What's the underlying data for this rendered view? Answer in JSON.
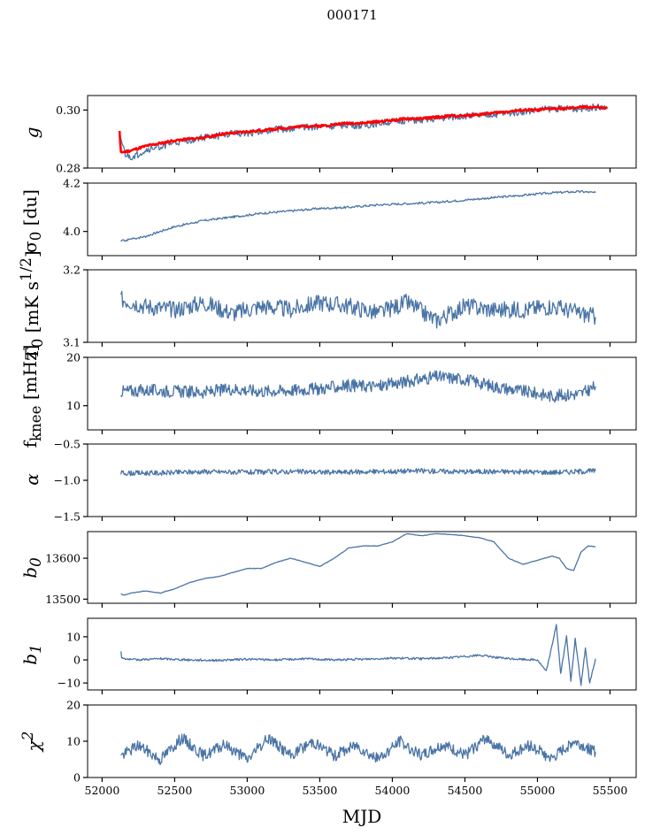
{
  "title": "000171",
  "xlabel": "MJD",
  "colors": {
    "series": "#4a74a6",
    "model": "#ff0000"
  },
  "chart_data": [
    {
      "type": "line",
      "name": "g",
      "ylabel_html": "g",
      "ylim": [
        0.28,
        0.305
      ],
      "yticks": [
        0.28,
        0.3
      ],
      "ytick_labels": [
        "0.28",
        "0.30"
      ],
      "series": [
        {
          "name": "g",
          "color": "#4a74a6",
          "x": [
            52120,
            52160,
            52200,
            52300,
            52400,
            52500,
            52600,
            52700,
            52800,
            52900,
            53000,
            53100,
            53200,
            53300,
            53400,
            53500,
            53600,
            53700,
            53800,
            53900,
            54000,
            54100,
            54200,
            54300,
            54400,
            54500,
            54600,
            54700,
            54800,
            54900,
            55000,
            55100,
            55200,
            55300,
            55400,
            55480
          ],
          "y": [
            0.2915,
            0.2845,
            0.2835,
            0.286,
            0.2875,
            0.2885,
            0.2895,
            0.2905,
            0.291,
            0.292,
            0.292,
            0.2925,
            0.2935,
            0.2935,
            0.294,
            0.2945,
            0.2945,
            0.295,
            0.2945,
            0.2955,
            0.296,
            0.2965,
            0.2965,
            0.297,
            0.2975,
            0.298,
            0.298,
            0.2985,
            0.299,
            0.2995,
            0.3,
            0.3005,
            0.3005,
            0.3005,
            0.301,
            0.3005
          ]
        },
        {
          "name": "model",
          "color": "#ff0000",
          "x": [
            52120,
            52130,
            52150,
            52200,
            52300,
            52400,
            52500,
            52600,
            52700,
            52800,
            52900,
            53000,
            53100,
            53200,
            53300,
            53400,
            53500,
            53600,
            53700,
            53800,
            53900,
            54000,
            54100,
            54200,
            54300,
            54400,
            54500,
            54600,
            54700,
            54800,
            54900,
            55000,
            55100,
            55200,
            55300,
            55400,
            55480
          ],
          "y": [
            0.2925,
            0.2855,
            0.2855,
            0.286,
            0.2875,
            0.2885,
            0.2895,
            0.29,
            0.2905,
            0.2915,
            0.292,
            0.2925,
            0.293,
            0.2935,
            0.294,
            0.2945,
            0.2945,
            0.295,
            0.2955,
            0.2955,
            0.296,
            0.2965,
            0.297,
            0.297,
            0.2975,
            0.298,
            0.298,
            0.2985,
            0.299,
            0.2995,
            0.3,
            0.3,
            0.3005,
            0.3005,
            0.301,
            0.301,
            0.3005
          ]
        }
      ]
    },
    {
      "type": "line",
      "name": "sigma0",
      "ylabel_html": "σ<sub>0</sub> [du]",
      "ylim": [
        3.9,
        4.2
      ],
      "yticks": [
        4.0,
        4.2
      ],
      "ytick_labels": [
        "4.0",
        "4.2"
      ],
      "series": [
        {
          "name": "sigma0",
          "color": "#4a74a6",
          "x": [
            52130,
            52300,
            52500,
            52700,
            52900,
            53100,
            53300,
            53500,
            53700,
            53900,
            54100,
            54300,
            54500,
            54700,
            54900,
            55100,
            55300,
            55400
          ],
          "y": [
            3.96,
            3.98,
            4.02,
            4.045,
            4.06,
            4.075,
            4.085,
            4.095,
            4.1,
            4.11,
            4.115,
            4.12,
            4.13,
            4.14,
            4.15,
            4.16,
            4.165,
            4.16
          ]
        }
      ]
    },
    {
      "type": "line",
      "name": "T0",
      "ylabel_html": "T<sub>0</sub> [mK s<sup>1/2</sup>]",
      "ylim": [
        3.1,
        3.2
      ],
      "yticks": [
        3.1,
        3.2
      ],
      "ytick_labels": [
        "3.1",
        "3.2"
      ],
      "series": [
        {
          "name": "T0",
          "color": "#4a74a6",
          "x": [
            52130,
            52300,
            52500,
            52700,
            52900,
            53100,
            53300,
            53500,
            53700,
            53900,
            54100,
            54300,
            54500,
            54700,
            54900,
            55100,
            55300,
            55400
          ],
          "y": [
            3.16,
            3.15,
            3.145,
            3.155,
            3.14,
            3.15,
            3.145,
            3.155,
            3.15,
            3.14,
            3.155,
            3.13,
            3.15,
            3.145,
            3.145,
            3.15,
            3.14,
            3.135
          ]
        }
      ]
    },
    {
      "type": "line",
      "name": "fknee",
      "ylabel_html": "f<sub>knee</sub> [mHz]",
      "ylim": [
        5,
        20
      ],
      "yticks": [
        10,
        20
      ],
      "ytick_labels": [
        "10",
        "20"
      ],
      "series": [
        {
          "name": "fknee",
          "color": "#4a74a6",
          "x": [
            52130,
            52300,
            52500,
            52700,
            52900,
            53100,
            53300,
            53500,
            53700,
            53900,
            54100,
            54300,
            54500,
            54700,
            54900,
            55100,
            55300,
            55400
          ],
          "y": [
            13,
            13.2,
            13,
            12.8,
            13.5,
            13,
            13.2,
            13.5,
            14.2,
            14,
            15,
            16,
            15.5,
            14,
            13,
            12,
            12.5,
            14
          ]
        }
      ]
    },
    {
      "type": "line",
      "name": "alpha",
      "ylabel_html": "α",
      "ylim": [
        -1.5,
        -0.5
      ],
      "yticks": [
        -1.5,
        -1.0,
        -0.5
      ],
      "ytick_labels": [
        "−1.5",
        "−1.0",
        "−0.5"
      ],
      "series": [
        {
          "name": "alpha",
          "color": "#4a74a6",
          "x": [
            52130,
            52400,
            52700,
            53000,
            53300,
            53600,
            53900,
            54200,
            54500,
            54800,
            55100,
            55400
          ],
          "y": [
            -0.9,
            -0.9,
            -0.88,
            -0.89,
            -0.88,
            -0.89,
            -0.88,
            -0.87,
            -0.88,
            -0.88,
            -0.89,
            -0.87
          ]
        }
      ]
    },
    {
      "type": "line",
      "name": "b0",
      "ylabel_html": "b<sub>0</sub>",
      "ylim": [
        13490,
        13665
      ],
      "yticks": [
        13500,
        13600
      ],
      "ytick_labels": [
        "13500",
        "13600"
      ],
      "series": [
        {
          "name": "b0",
          "color": "#4a74a6",
          "x": [
            52130,
            52150,
            52200,
            52300,
            52400,
            52500,
            52600,
            52700,
            52800,
            52900,
            53000,
            53100,
            53200,
            53300,
            53400,
            53500,
            53600,
            53700,
            53800,
            53900,
            54000,
            54100,
            54200,
            54300,
            54400,
            54500,
            54600,
            54700,
            54800,
            54900,
            55000,
            55100,
            55150,
            55200,
            55250,
            55300,
            55350,
            55400
          ],
          "y": [
            13513,
            13510,
            13515,
            13520,
            13515,
            13525,
            13540,
            13550,
            13555,
            13565,
            13575,
            13575,
            13590,
            13600,
            13590,
            13580,
            13600,
            13625,
            13630,
            13630,
            13640,
            13660,
            13655,
            13660,
            13658,
            13655,
            13650,
            13640,
            13600,
            13585,
            13595,
            13605,
            13600,
            13575,
            13570,
            13615,
            13630,
            13628
          ]
        }
      ]
    },
    {
      "type": "line",
      "name": "b1",
      "ylabel_html": "b<sub>1</sub>",
      "ylim": [
        -13,
        18
      ],
      "yticks": [
        -10,
        0,
        10
      ],
      "ytick_labels": [
        "−10",
        "0",
        "10"
      ],
      "series": [
        {
          "name": "b1",
          "color": "#4a74a6",
          "x": [
            52130,
            52135,
            52200,
            52400,
            52600,
            52800,
            53000,
            53200,
            53400,
            53600,
            53800,
            54000,
            54200,
            54400,
            54600,
            54800,
            55000,
            55060,
            55100,
            55130,
            55160,
            55200,
            55230,
            55260,
            55300,
            55330,
            55360,
            55400
          ],
          "y": [
            3.5,
            1,
            0,
            0.5,
            0,
            -0.2,
            0.3,
            0,
            0.5,
            0,
            0.3,
            0.8,
            0.5,
            1,
            2,
            0.5,
            0,
            -5,
            6,
            15.5,
            -6,
            10,
            -9,
            9,
            -11,
            5,
            -10,
            0.5
          ]
        }
      ]
    },
    {
      "type": "line",
      "name": "chi2",
      "ylabel_html": "χ<sup>2</sup>",
      "ylim": [
        0,
        20
      ],
      "yticks": [
        0,
        10,
        20
      ],
      "ytick_labels": [
        "0",
        "10",
        "20"
      ],
      "series": [
        {
          "name": "chi2",
          "color": "#4a74a6",
          "x": [
            52130,
            52250,
            52400,
            52550,
            52700,
            52850,
            53000,
            53150,
            53300,
            53450,
            53600,
            53750,
            53900,
            54050,
            54200,
            54350,
            54500,
            54650,
            54800,
            54950,
            55100,
            55250,
            55350,
            55400
          ],
          "y": [
            6,
            9,
            5,
            11,
            6,
            9,
            5,
            11,
            6,
            10,
            6,
            9,
            5,
            10,
            6,
            9,
            6,
            11,
            6,
            9,
            5,
            10,
            8,
            7
          ]
        }
      ]
    }
  ],
  "xaxis": {
    "xlim": [
      51900,
      55680
    ],
    "xticks": [
      52000,
      52500,
      53000,
      53500,
      54000,
      54500,
      55000,
      55500
    ],
    "xtick_labels": [
      "52000",
      "52500",
      "53000",
      "53500",
      "54000",
      "54500",
      "55000",
      "55500"
    ]
  }
}
